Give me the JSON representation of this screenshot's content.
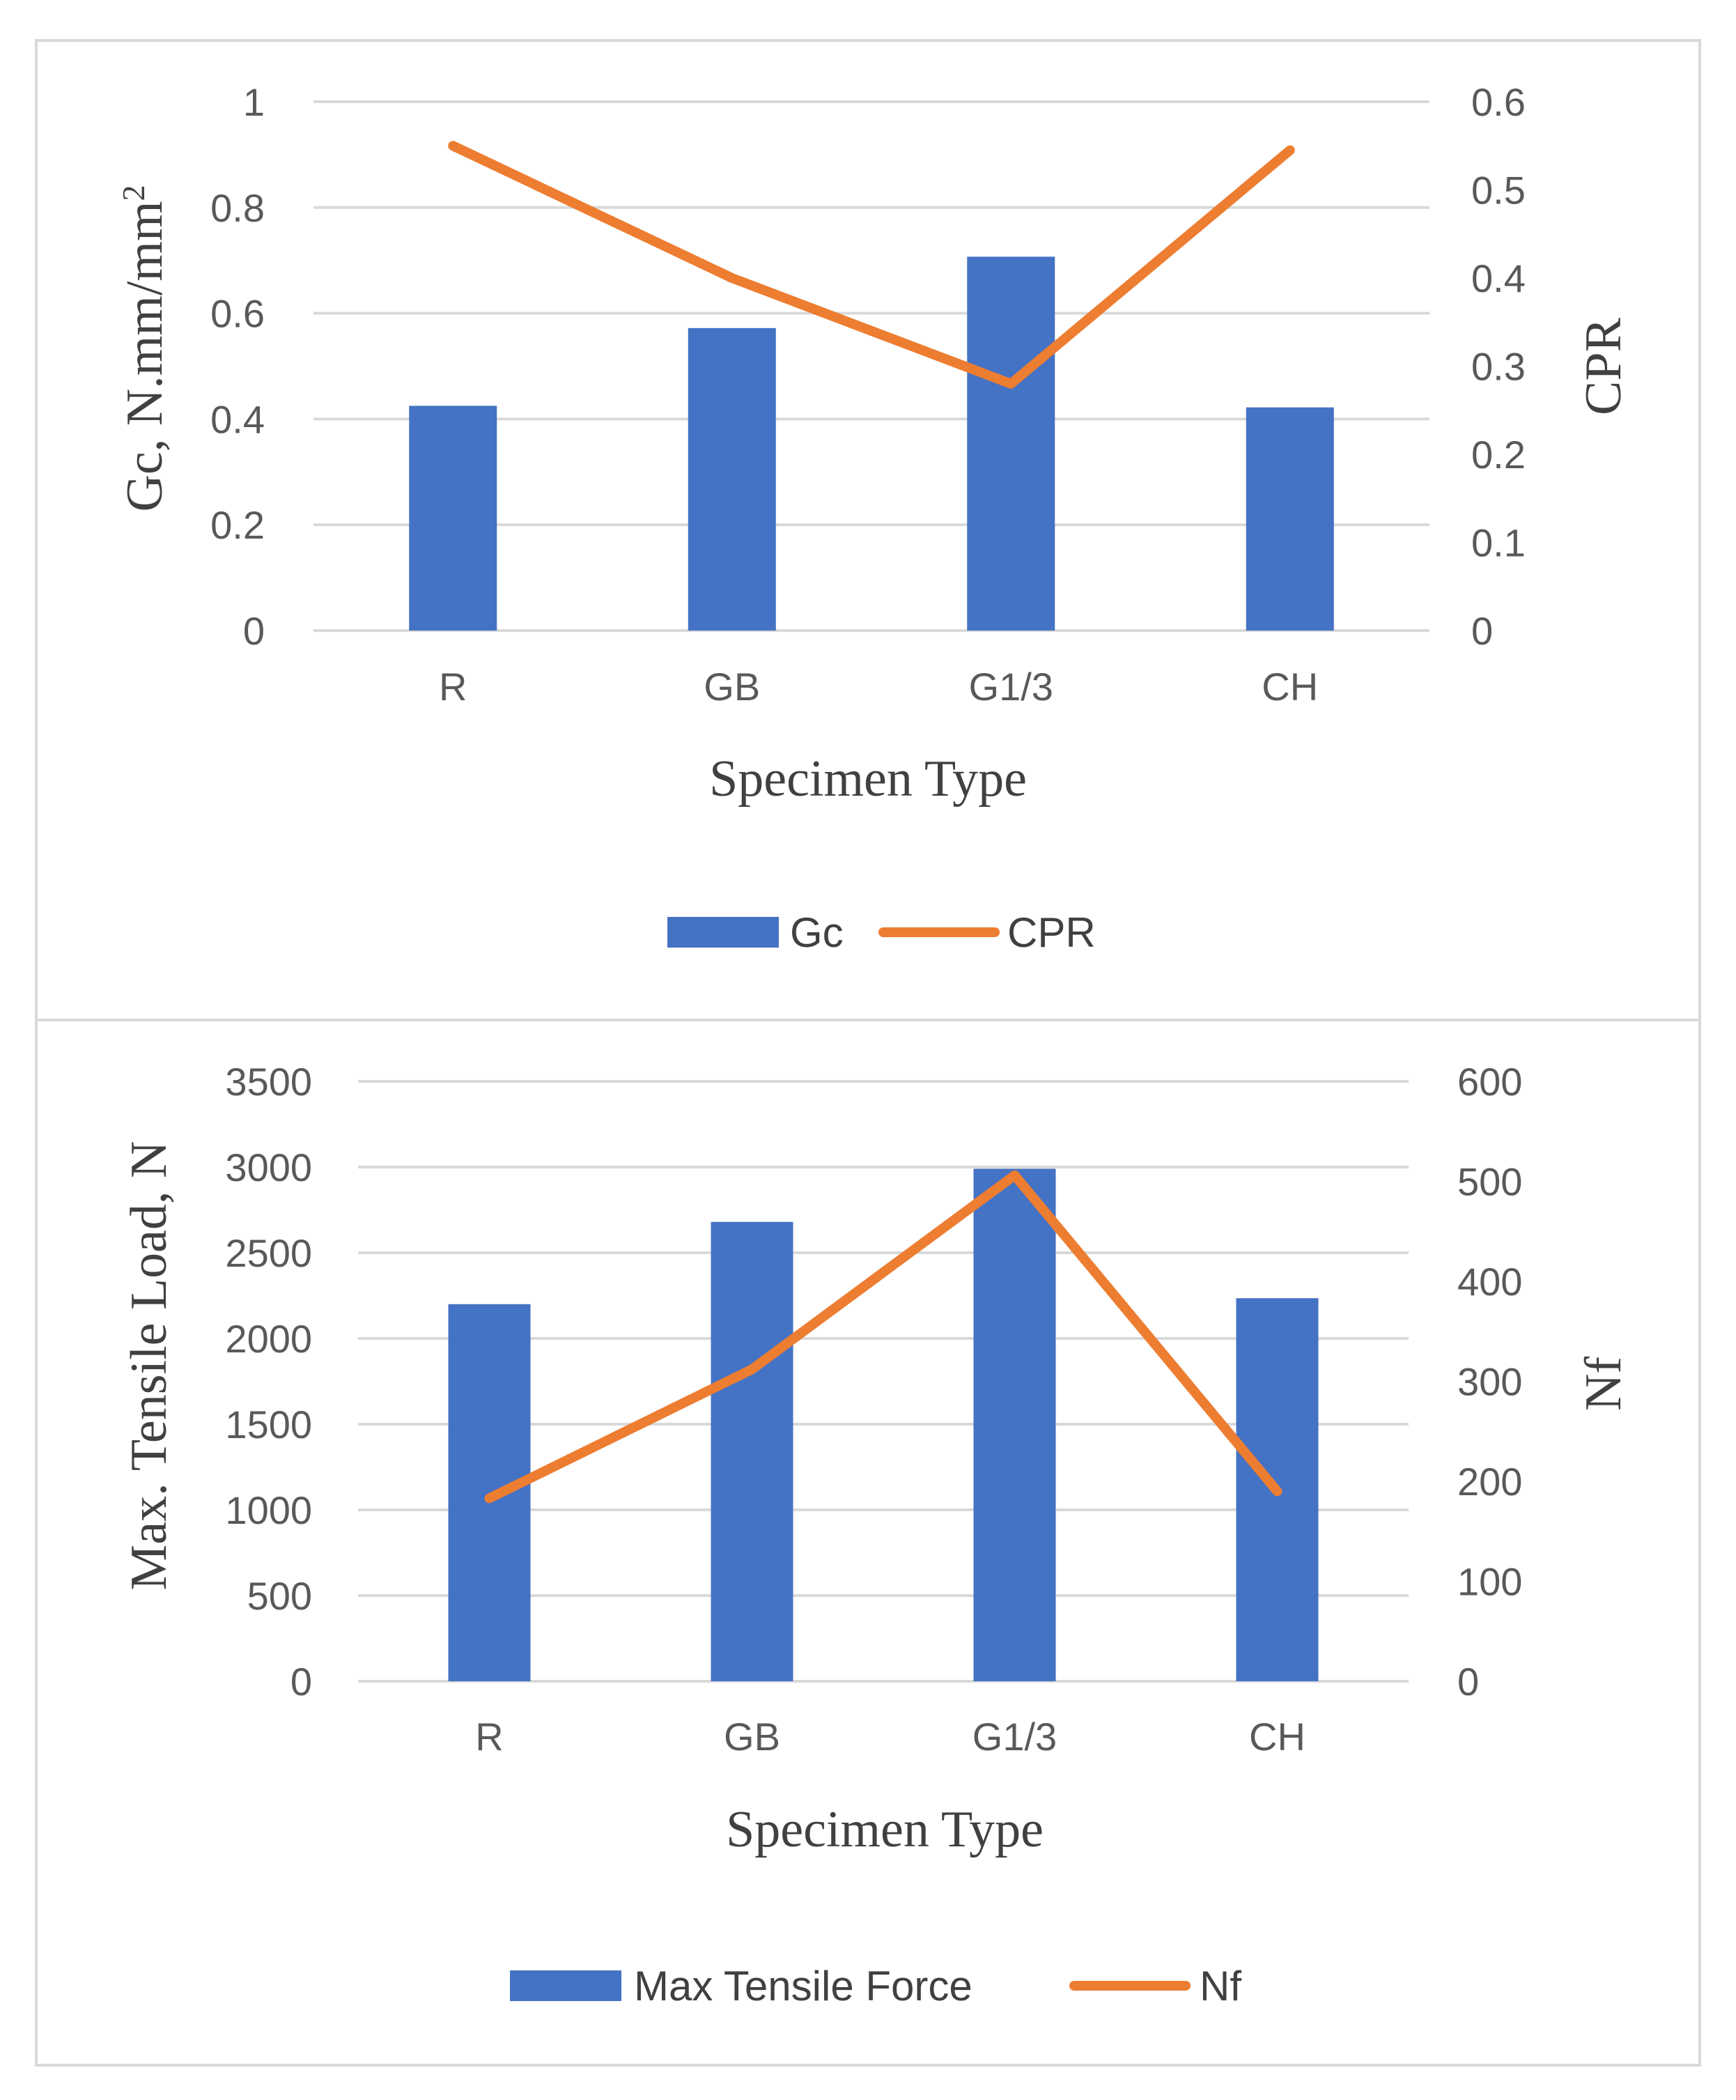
{
  "colors": {
    "bar": "#4472C4",
    "line": "#ED7D31",
    "grid": "#d9d9d9"
  },
  "chart_data": [
    {
      "type": "bar+line",
      "categories": [
        "R",
        "GB",
        "G1/3",
        "CH"
      ],
      "series": [
        {
          "name": "Gc",
          "kind": "bar",
          "axis": "left",
          "values": [
            0.425,
            0.572,
            0.707,
            0.422
          ]
        },
        {
          "name": "CPR",
          "kind": "line",
          "axis": "right",
          "values": [
            0.55,
            0.4,
            0.28,
            0.545
          ]
        }
      ],
      "xlabel": "Specimen Type",
      "ylabel": "Gc, N.mm/mm",
      "ylabel_sup": "2",
      "y2label": "CPR",
      "ylim": [
        0,
        1
      ],
      "y2lim": [
        0,
        0.6
      ],
      "yticks": [
        "0",
        "0.2",
        "0.4",
        "0.6",
        "0.8",
        "1"
      ],
      "y2ticks": [
        "0",
        "0.1",
        "0.2",
        "0.3",
        "0.4",
        "0.5",
        "0.6"
      ],
      "legend": [
        "Gc",
        "CPR"
      ],
      "legend_position": "bottom",
      "grid": true
    },
    {
      "type": "bar+line",
      "categories": [
        "R",
        "GB",
        "G1/3",
        "CH"
      ],
      "series": [
        {
          "name": "Max Tensile Force",
          "kind": "bar",
          "axis": "left",
          "values": [
            2200,
            2680,
            2990,
            2235
          ]
        },
        {
          "name": "Nf",
          "kind": "line",
          "axis": "right",
          "values": [
            183,
            312,
            506,
            190
          ]
        }
      ],
      "xlabel": "Specimen Type",
      "ylabel": "Max. Tensile Load, N",
      "y2label": "Nf",
      "ylim": [
        0,
        3500
      ],
      "y2lim": [
        0,
        600
      ],
      "yticks": [
        "0",
        "500",
        "1000",
        "1500",
        "2000",
        "2500",
        "3000",
        "3500"
      ],
      "y2ticks": [
        "0",
        "100",
        "200",
        "300",
        "400",
        "500",
        "600"
      ],
      "legend": [
        "Max Tensile Force",
        "Nf"
      ],
      "legend_position": "bottom",
      "grid": true
    }
  ]
}
